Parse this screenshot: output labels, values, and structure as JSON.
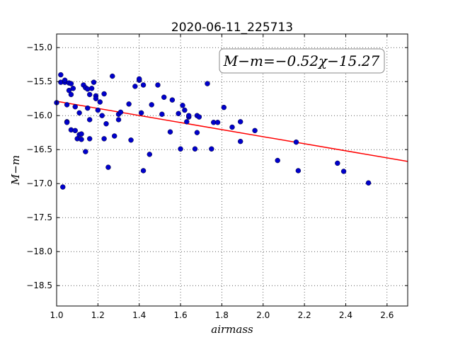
{
  "chart_data": {
    "type": "scatter",
    "title": "2020-06-11_225713",
    "xlabel": "airmass",
    "ylabel": "M−m",
    "xlim": [
      1.0,
      2.7
    ],
    "ylim": [
      -18.8,
      -14.8
    ],
    "y_inverted": true,
    "grid": true,
    "xticks": [
      1.0,
      1.2,
      1.4,
      1.6,
      1.8,
      2.0,
      2.2,
      2.4,
      2.6
    ],
    "xtick_labels": [
      "1.0",
      "1.2",
      "1.4",
      "1.6",
      "1.8",
      "2.0",
      "2.2",
      "2.4",
      "2.6"
    ],
    "yticks": [
      -15.0,
      -15.5,
      -16.0,
      -16.5,
      -17.0,
      -17.5,
      -18.0,
      -18.5
    ],
    "ytick_labels": [
      "−15.0",
      "−15.5",
      "−16.0",
      "−16.5",
      "−17.0",
      "−17.5",
      "−18.0",
      "−18.5"
    ],
    "annotation": "M−m=−0.52χ−15.27",
    "fit": {
      "slope": -0.52,
      "intercept": -15.27,
      "color": "#ff0000"
    },
    "marker_color": "#0000cc",
    "points": [
      [
        1.0,
        -15.81
      ],
      [
        1.02,
        -15.4
      ],
      [
        1.02,
        -15.51
      ],
      [
        1.03,
        -17.05
      ],
      [
        1.04,
        -15.51
      ],
      [
        1.04,
        -15.48
      ],
      [
        1.05,
        -15.84
      ],
      [
        1.05,
        -16.09
      ],
      [
        1.05,
        -16.1
      ],
      [
        1.06,
        -15.52
      ],
      [
        1.06,
        -15.63
      ],
      [
        1.07,
        -15.53
      ],
      [
        1.07,
        -15.69
      ],
      [
        1.07,
        -16.21
      ],
      [
        1.08,
        -15.6
      ],
      [
        1.09,
        -16.22
      ],
      [
        1.09,
        -15.87
      ],
      [
        1.1,
        -16.34
      ],
      [
        1.11,
        -16.28
      ],
      [
        1.11,
        -15.96
      ],
      [
        1.12,
        -16.27
      ],
      [
        1.12,
        -16.35
      ],
      [
        1.13,
        -15.55
      ],
      [
        1.14,
        -15.59
      ],
      [
        1.14,
        -16.53
      ],
      [
        1.15,
        -15.61
      ],
      [
        1.15,
        -15.89
      ],
      [
        1.16,
        -16.06
      ],
      [
        1.16,
        -16.34
      ],
      [
        1.16,
        -15.69
      ],
      [
        1.17,
        -15.6
      ],
      [
        1.18,
        -15.51
      ],
      [
        1.19,
        -15.71
      ],
      [
        1.19,
        -15.75
      ],
      [
        1.2,
        -15.92
      ],
      [
        1.21,
        -15.8
      ],
      [
        1.22,
        -16.0
      ],
      [
        1.23,
        -16.34
      ],
      [
        1.23,
        -15.68
      ],
      [
        1.24,
        -16.12
      ],
      [
        1.25,
        -16.76
      ],
      [
        1.27,
        -15.42
      ],
      [
        1.28,
        -16.3
      ],
      [
        1.3,
        -16.06
      ],
      [
        1.3,
        -15.98
      ],
      [
        1.31,
        -15.95
      ],
      [
        1.35,
        -15.83
      ],
      [
        1.36,
        -16.36
      ],
      [
        1.38,
        -15.57
      ],
      [
        1.4,
        -15.48
      ],
      [
        1.4,
        -15.46
      ],
      [
        1.41,
        -15.96
      ],
      [
        1.42,
        -15.55
      ],
      [
        1.42,
        -16.81
      ],
      [
        1.45,
        -16.57
      ],
      [
        1.46,
        -15.84
      ],
      [
        1.49,
        -15.55
      ],
      [
        1.51,
        -15.98
      ],
      [
        1.52,
        -15.73
      ],
      [
        1.55,
        -16.24
      ],
      [
        1.56,
        -15.77
      ],
      [
        1.59,
        -15.97
      ],
      [
        1.6,
        -16.49
      ],
      [
        1.61,
        -15.85
      ],
      [
        1.62,
        -15.92
      ],
      [
        1.63,
        -16.09
      ],
      [
        1.64,
        -16.02
      ],
      [
        1.64,
        -16.0
      ],
      [
        1.67,
        -16.49
      ],
      [
        1.68,
        -16.25
      ],
      [
        1.68,
        -16.0
      ],
      [
        1.69,
        -16.02
      ],
      [
        1.73,
        -15.53
      ],
      [
        1.75,
        -16.49
      ],
      [
        1.76,
        -16.1
      ],
      [
        1.78,
        -16.1
      ],
      [
        1.81,
        -15.88
      ],
      [
        1.85,
        -16.17
      ],
      [
        1.89,
        -16.09
      ],
      [
        1.89,
        -16.38
      ],
      [
        1.96,
        -16.22
      ],
      [
        2.07,
        -16.66
      ],
      [
        2.16,
        -16.39
      ],
      [
        2.17,
        -16.81
      ],
      [
        2.36,
        -16.7
      ],
      [
        2.39,
        -16.82
      ],
      [
        2.51,
        -16.99
      ]
    ]
  }
}
